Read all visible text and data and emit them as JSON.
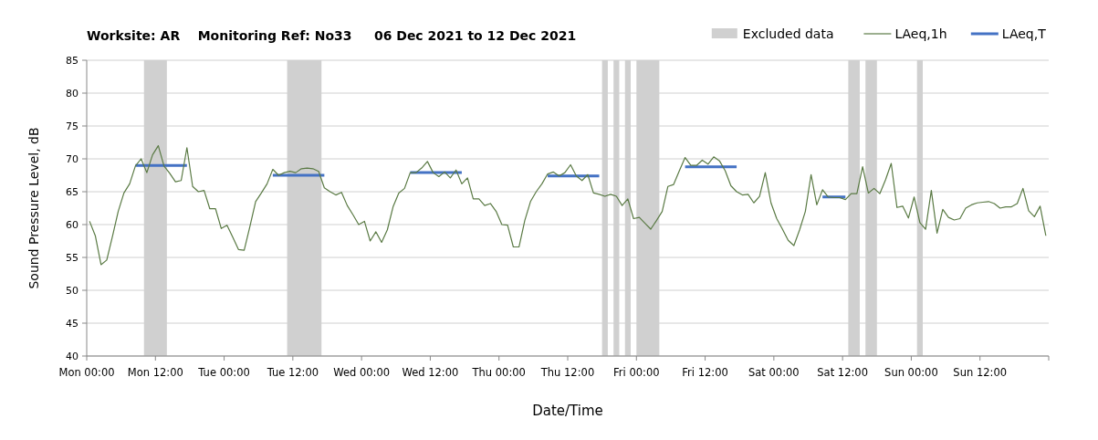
{
  "chart_data": {
    "type": "line",
    "title": "Worksite: AR    Monitoring Ref: No33     06 Dec 2021 to 12 Dec 2021",
    "xlabel": "Date/Time",
    "ylabel": "Sound Pressure Level, dB",
    "xlim": [
      "2021-12-06T00:00",
      "2021-12-13T00:00"
    ],
    "ylim": [
      40,
      85
    ],
    "xticks": [
      {
        "value": "2021-12-06T00:00",
        "label": "Mon 00:00"
      },
      {
        "value": "2021-12-06T12:00",
        "label": "Mon 12:00"
      },
      {
        "value": "2021-12-07T00:00",
        "label": "Tue 00:00"
      },
      {
        "value": "2021-12-07T12:00",
        "label": "Tue 12:00"
      },
      {
        "value": "2021-12-08T00:00",
        "label": "Wed 00:00"
      },
      {
        "value": "2021-12-08T12:00",
        "label": "Wed 12:00"
      },
      {
        "value": "2021-12-09T00:00",
        "label": "Thu 00:00"
      },
      {
        "value": "2021-12-09T12:00",
        "label": "Thu 12:00"
      },
      {
        "value": "2021-12-10T00:00",
        "label": "Fri 00:00"
      },
      {
        "value": "2021-12-10T12:00",
        "label": "Fri 12:00"
      },
      {
        "value": "2021-12-11T00:00",
        "label": "Sat 00:00"
      },
      {
        "value": "2021-12-11T12:00",
        "label": "Sat 12:00"
      },
      {
        "value": "2021-12-12T00:00",
        "label": "Sun 00:00"
      },
      {
        "value": "2021-12-12T12:00",
        "label": "Sun 12:00"
      },
      {
        "value": "2021-12-13T00:00",
        "label": null
      }
    ],
    "yticks": [
      40,
      45,
      50,
      55,
      60,
      65,
      70,
      75,
      80,
      85
    ],
    "grid": "y",
    "legend": "top right",
    "marker": "none",
    "bands": [
      {
        "axis": "x",
        "from": "2021-12-06T10:00",
        "to": "2021-12-06T14:00",
        "label": "Excluded data",
        "color": "#d0d0d0"
      },
      {
        "axis": "x",
        "from": "2021-12-07T11:00",
        "to": "2021-12-07T17:00",
        "color": "#d0d0d0"
      },
      {
        "axis": "x",
        "from": "2021-12-09T18:00",
        "to": "2021-12-09T19:00",
        "color": "#d0d0d0"
      },
      {
        "axis": "x",
        "from": "2021-12-09T20:00",
        "to": "2021-12-09T21:00",
        "color": "#d0d0d0"
      },
      {
        "axis": "x",
        "from": "2021-12-09T22:00",
        "to": "2021-12-09T23:00",
        "color": "#d0d0d0"
      },
      {
        "axis": "x",
        "from": "2021-12-10T00:00",
        "to": "2021-12-10T04:00",
        "color": "#d0d0d0"
      },
      {
        "axis": "x",
        "from": "2021-12-11T13:00",
        "to": "2021-12-11T15:00",
        "color": "#d0d0d0"
      },
      {
        "axis": "x",
        "from": "2021-12-11T16:00",
        "to": "2021-12-11T18:00",
        "color": "#d0d0d0"
      },
      {
        "axis": "x",
        "from": "2021-12-12T01:00",
        "to": "2021-12-12T02:00",
        "color": "#d0d0d0"
      }
    ],
    "series": [
      {
        "name": "LAeq,1h",
        "color": "#5a7a44",
        "line_style": "solid",
        "x": [
          "2021-12-06T00:30",
          "2021-12-06T01:30",
          "2021-12-06T02:30",
          "2021-12-06T03:30",
          "2021-12-06T04:30",
          "2021-12-06T05:30",
          "2021-12-06T06:30",
          "2021-12-06T07:30",
          "2021-12-06T08:30",
          "2021-12-06T09:30",
          "2021-12-06T10:30",
          "2021-12-06T11:30",
          "2021-12-06T12:30",
          "2021-12-06T13:30",
          "2021-12-06T14:30",
          "2021-12-06T15:30",
          "2021-12-06T16:30",
          "2021-12-06T17:30",
          "2021-12-06T18:30",
          "2021-12-06T19:30",
          "2021-12-06T20:30",
          "2021-12-06T21:30",
          "2021-12-06T22:30",
          "2021-12-06T23:30",
          "2021-12-07T00:30",
          "2021-12-07T01:30",
          "2021-12-07T02:30",
          "2021-12-07T03:30",
          "2021-12-07T04:30",
          "2021-12-07T05:30",
          "2021-12-07T06:30",
          "2021-12-07T07:30",
          "2021-12-07T08:30",
          "2021-12-07T09:30",
          "2021-12-07T10:30",
          "2021-12-07T11:30",
          "2021-12-07T12:30",
          "2021-12-07T13:30",
          "2021-12-07T14:30",
          "2021-12-07T15:30",
          "2021-12-07T16:30",
          "2021-12-07T17:30",
          "2021-12-07T18:30",
          "2021-12-07T19:30",
          "2021-12-07T20:30",
          "2021-12-07T21:30",
          "2021-12-07T22:30",
          "2021-12-07T23:30",
          "2021-12-08T00:30",
          "2021-12-08T01:30",
          "2021-12-08T02:30",
          "2021-12-08T03:30",
          "2021-12-08T04:30",
          "2021-12-08T05:30",
          "2021-12-08T06:30",
          "2021-12-08T07:30",
          "2021-12-08T08:30",
          "2021-12-08T09:30",
          "2021-12-08T10:30",
          "2021-12-08T11:30",
          "2021-12-08T12:30",
          "2021-12-08T13:30",
          "2021-12-08T14:30",
          "2021-12-08T15:30",
          "2021-12-08T16:30",
          "2021-12-08T17:30",
          "2021-12-08T18:30",
          "2021-12-08T19:30",
          "2021-12-08T20:30",
          "2021-12-08T21:30",
          "2021-12-08T22:30",
          "2021-12-08T23:30",
          "2021-12-09T00:30",
          "2021-12-09T01:30",
          "2021-12-09T02:30",
          "2021-12-09T03:30",
          "2021-12-09T04:30",
          "2021-12-09T05:30",
          "2021-12-09T06:30",
          "2021-12-09T07:30",
          "2021-12-09T08:30",
          "2021-12-09T09:30",
          "2021-12-09T10:30",
          "2021-12-09T11:30",
          "2021-12-09T12:30",
          "2021-12-09T13:30",
          "2021-12-09T14:30",
          "2021-12-09T15:30",
          "2021-12-09T16:30",
          "2021-12-09T17:30",
          "2021-12-09T18:30",
          "2021-12-09T19:30",
          "2021-12-09T20:30",
          "2021-12-09T21:30",
          "2021-12-09T22:30",
          "2021-12-09T23:30",
          "2021-12-10T00:30",
          "2021-12-10T01:30",
          "2021-12-10T02:30",
          "2021-12-10T03:30",
          "2021-12-10T04:30",
          "2021-12-10T05:30",
          "2021-12-10T06:30",
          "2021-12-10T07:30",
          "2021-12-10T08:30",
          "2021-12-10T09:30",
          "2021-12-10T10:30",
          "2021-12-10T11:30",
          "2021-12-10T12:30",
          "2021-12-10T13:30",
          "2021-12-10T14:30",
          "2021-12-10T15:30",
          "2021-12-10T16:30",
          "2021-12-10T17:30",
          "2021-12-10T18:30",
          "2021-12-10T19:30",
          "2021-12-10T20:30",
          "2021-12-10T21:30",
          "2021-12-10T22:30",
          "2021-12-10T23:30",
          "2021-12-11T00:30",
          "2021-12-11T01:30",
          "2021-12-11T02:30",
          "2021-12-11T03:30",
          "2021-12-11T04:30",
          "2021-12-11T05:30",
          "2021-12-11T06:30",
          "2021-12-11T07:30",
          "2021-12-11T08:30",
          "2021-12-11T09:30",
          "2021-12-11T10:30",
          "2021-12-11T11:30",
          "2021-12-11T12:30",
          "2021-12-11T13:30",
          "2021-12-11T14:30",
          "2021-12-11T15:30",
          "2021-12-11T16:30",
          "2021-12-11T17:30",
          "2021-12-11T18:30",
          "2021-12-11T19:30",
          "2021-12-11T20:30",
          "2021-12-11T21:30",
          "2021-12-11T22:30",
          "2021-12-11T23:30",
          "2021-12-12T00:30",
          "2021-12-12T01:30",
          "2021-12-12T02:30",
          "2021-12-12T03:30",
          "2021-12-12T04:30",
          "2021-12-12T05:30",
          "2021-12-12T06:30",
          "2021-12-12T07:30",
          "2021-12-12T08:30",
          "2021-12-12T09:30",
          "2021-12-12T10:30",
          "2021-12-12T11:30",
          "2021-12-12T12:30",
          "2021-12-12T13:30",
          "2021-12-12T14:30",
          "2021-12-12T15:30",
          "2021-12-12T16:30",
          "2021-12-12T17:30",
          "2021-12-12T18:30",
          "2021-12-12T19:30",
          "2021-12-12T20:30",
          "2021-12-12T21:30",
          "2021-12-12T22:30",
          "2021-12-12T23:30"
        ],
        "values": [
          60.5,
          58.3,
          53.9,
          54.6,
          58.2,
          62.0,
          64.8,
          66.2,
          68.9,
          70.0,
          67.9,
          70.6,
          72.0,
          68.9,
          67.8,
          66.5,
          66.7,
          71.7,
          65.8,
          65.0,
          65.2,
          62.4,
          62.4,
          59.4,
          59.9,
          58.1,
          56.2,
          56.1,
          59.7,
          63.5,
          64.8,
          66.2,
          68.4,
          67.5,
          67.9,
          68.1,
          67.9,
          68.5,
          68.6,
          68.5,
          68.1,
          65.6,
          65.0,
          64.5,
          64.9,
          62.9,
          61.5,
          60.0,
          60.5,
          57.5,
          58.9,
          57.3,
          59.2,
          62.7,
          64.8,
          65.5,
          67.9,
          67.9,
          68.6,
          69.6,
          67.9,
          67.3,
          68.0,
          67.1,
          68.3,
          66.2,
          67.1,
          63.9,
          63.9,
          62.9,
          63.2,
          62.0,
          60.0,
          59.9,
          56.6,
          56.6,
          60.6,
          63.5,
          65.0,
          66.2,
          67.7,
          68.0,
          67.4,
          67.9,
          69.1,
          67.4,
          66.7,
          67.6,
          64.8,
          64.6,
          64.3,
          64.6,
          64.3,
          62.9,
          63.9,
          60.9,
          61.1,
          60.2,
          59.3,
          60.6,
          62.0,
          65.8,
          66.1,
          68.2,
          70.2,
          69.0,
          69.0,
          69.8,
          69.2,
          70.3,
          69.7,
          68.2,
          65.9,
          65.0,
          64.5,
          64.6,
          63.3,
          64.3,
          67.9,
          63.3,
          60.9,
          59.3,
          57.6,
          56.8,
          59.2,
          62.0,
          67.6,
          63.0,
          65.3,
          64.2,
          64.1,
          64.1,
          63.8,
          64.7,
          64.7,
          68.8,
          64.8,
          65.5,
          64.7,
          66.8,
          69.3,
          62.6,
          62.8,
          61.0,
          64.2,
          60.3,
          59.3,
          65.2,
          58.7,
          62.3,
          61.1,
          60.7,
          60.9,
          62.5,
          63.0,
          63.3,
          63.4,
          63.5,
          63.2,
          62.5,
          62.7,
          62.7,
          63.2,
          65.5,
          62.1,
          61.2,
          62.8,
          58.3
        ]
      },
      {
        "name": "LAeq,T",
        "color": "#4472c4",
        "line_style": "solid",
        "x": [
          "2021-12-06T08:30",
          "2021-12-06T17:30",
          "2021-12-07T01:00",
          "2021-12-07T08:30",
          "2021-12-07T17:30",
          "2021-12-08T01:00",
          "2021-12-08T08:30",
          "2021-12-08T17:30",
          "2021-12-09T01:00",
          "2021-12-09T08:30",
          "2021-12-09T17:30",
          "2021-12-10T01:00",
          "2021-12-10T08:30",
          "2021-12-10T17:30",
          "2021-12-11T01:00",
          "2021-12-11T08:30",
          "2021-12-11T12:30"
        ],
        "values": [
          69.0,
          69.0,
          null,
          67.5,
          67.5,
          null,
          67.9,
          67.9,
          null,
          67.4,
          67.4,
          null,
          68.8,
          68.8,
          null,
          64.2,
          64.2
        ]
      }
    ]
  }
}
